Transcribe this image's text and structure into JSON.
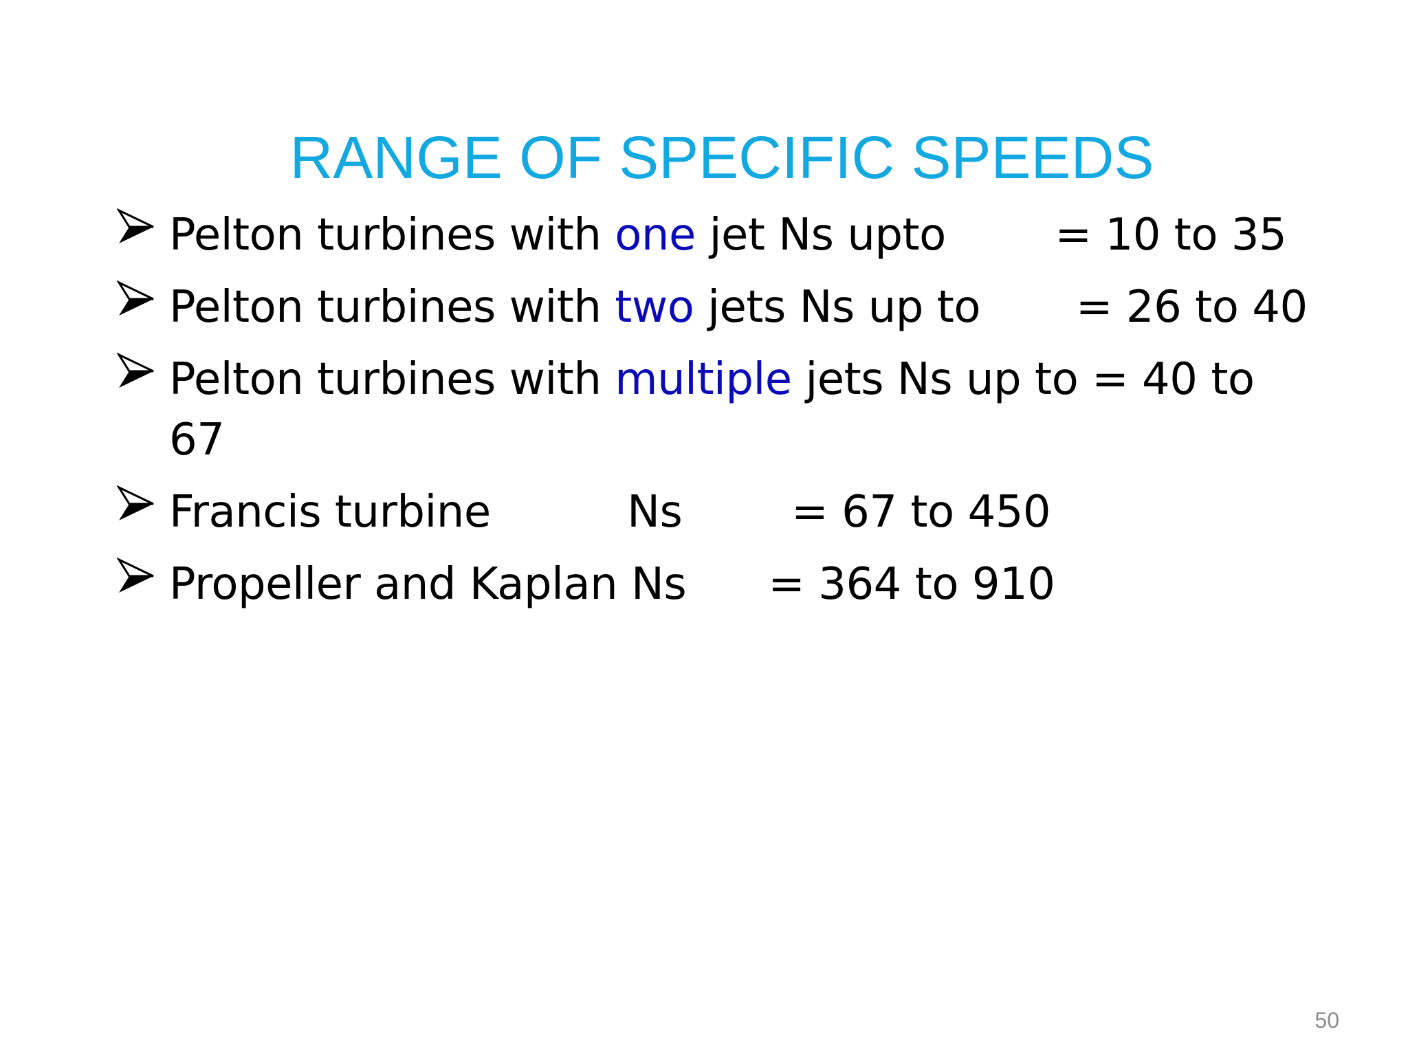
{
  "slide": {
    "title": "RANGE OF SPECIFIC SPEEDS",
    "bullets": [
      {
        "pre": "Pelton turbines with ",
        "highlight": "one",
        "post": " jet Ns upto        = 10 to 35"
      },
      {
        "pre": "Pelton turbines with ",
        "highlight": "two",
        "post": " jets Ns up to       = 26 to 40"
      },
      {
        "pre": "Pelton turbines with ",
        "highlight": "multiple",
        "post": " jets Ns up to = 40 to 67"
      },
      {
        "pre": "Francis turbine          Ns        = 67 to 450",
        "highlight": "",
        "post": ""
      },
      {
        "pre": "Propeller and Kaplan Ns      = 364 to 910",
        "highlight": "",
        "post": ""
      }
    ],
    "page_number": "50"
  },
  "colors": {
    "title": "#13a8e0",
    "highlight": "#0a0ab8",
    "text": "#000000",
    "page_number": "#8c8c8c"
  },
  "icons": {
    "bullet": "arrowhead-bullet-icon"
  }
}
